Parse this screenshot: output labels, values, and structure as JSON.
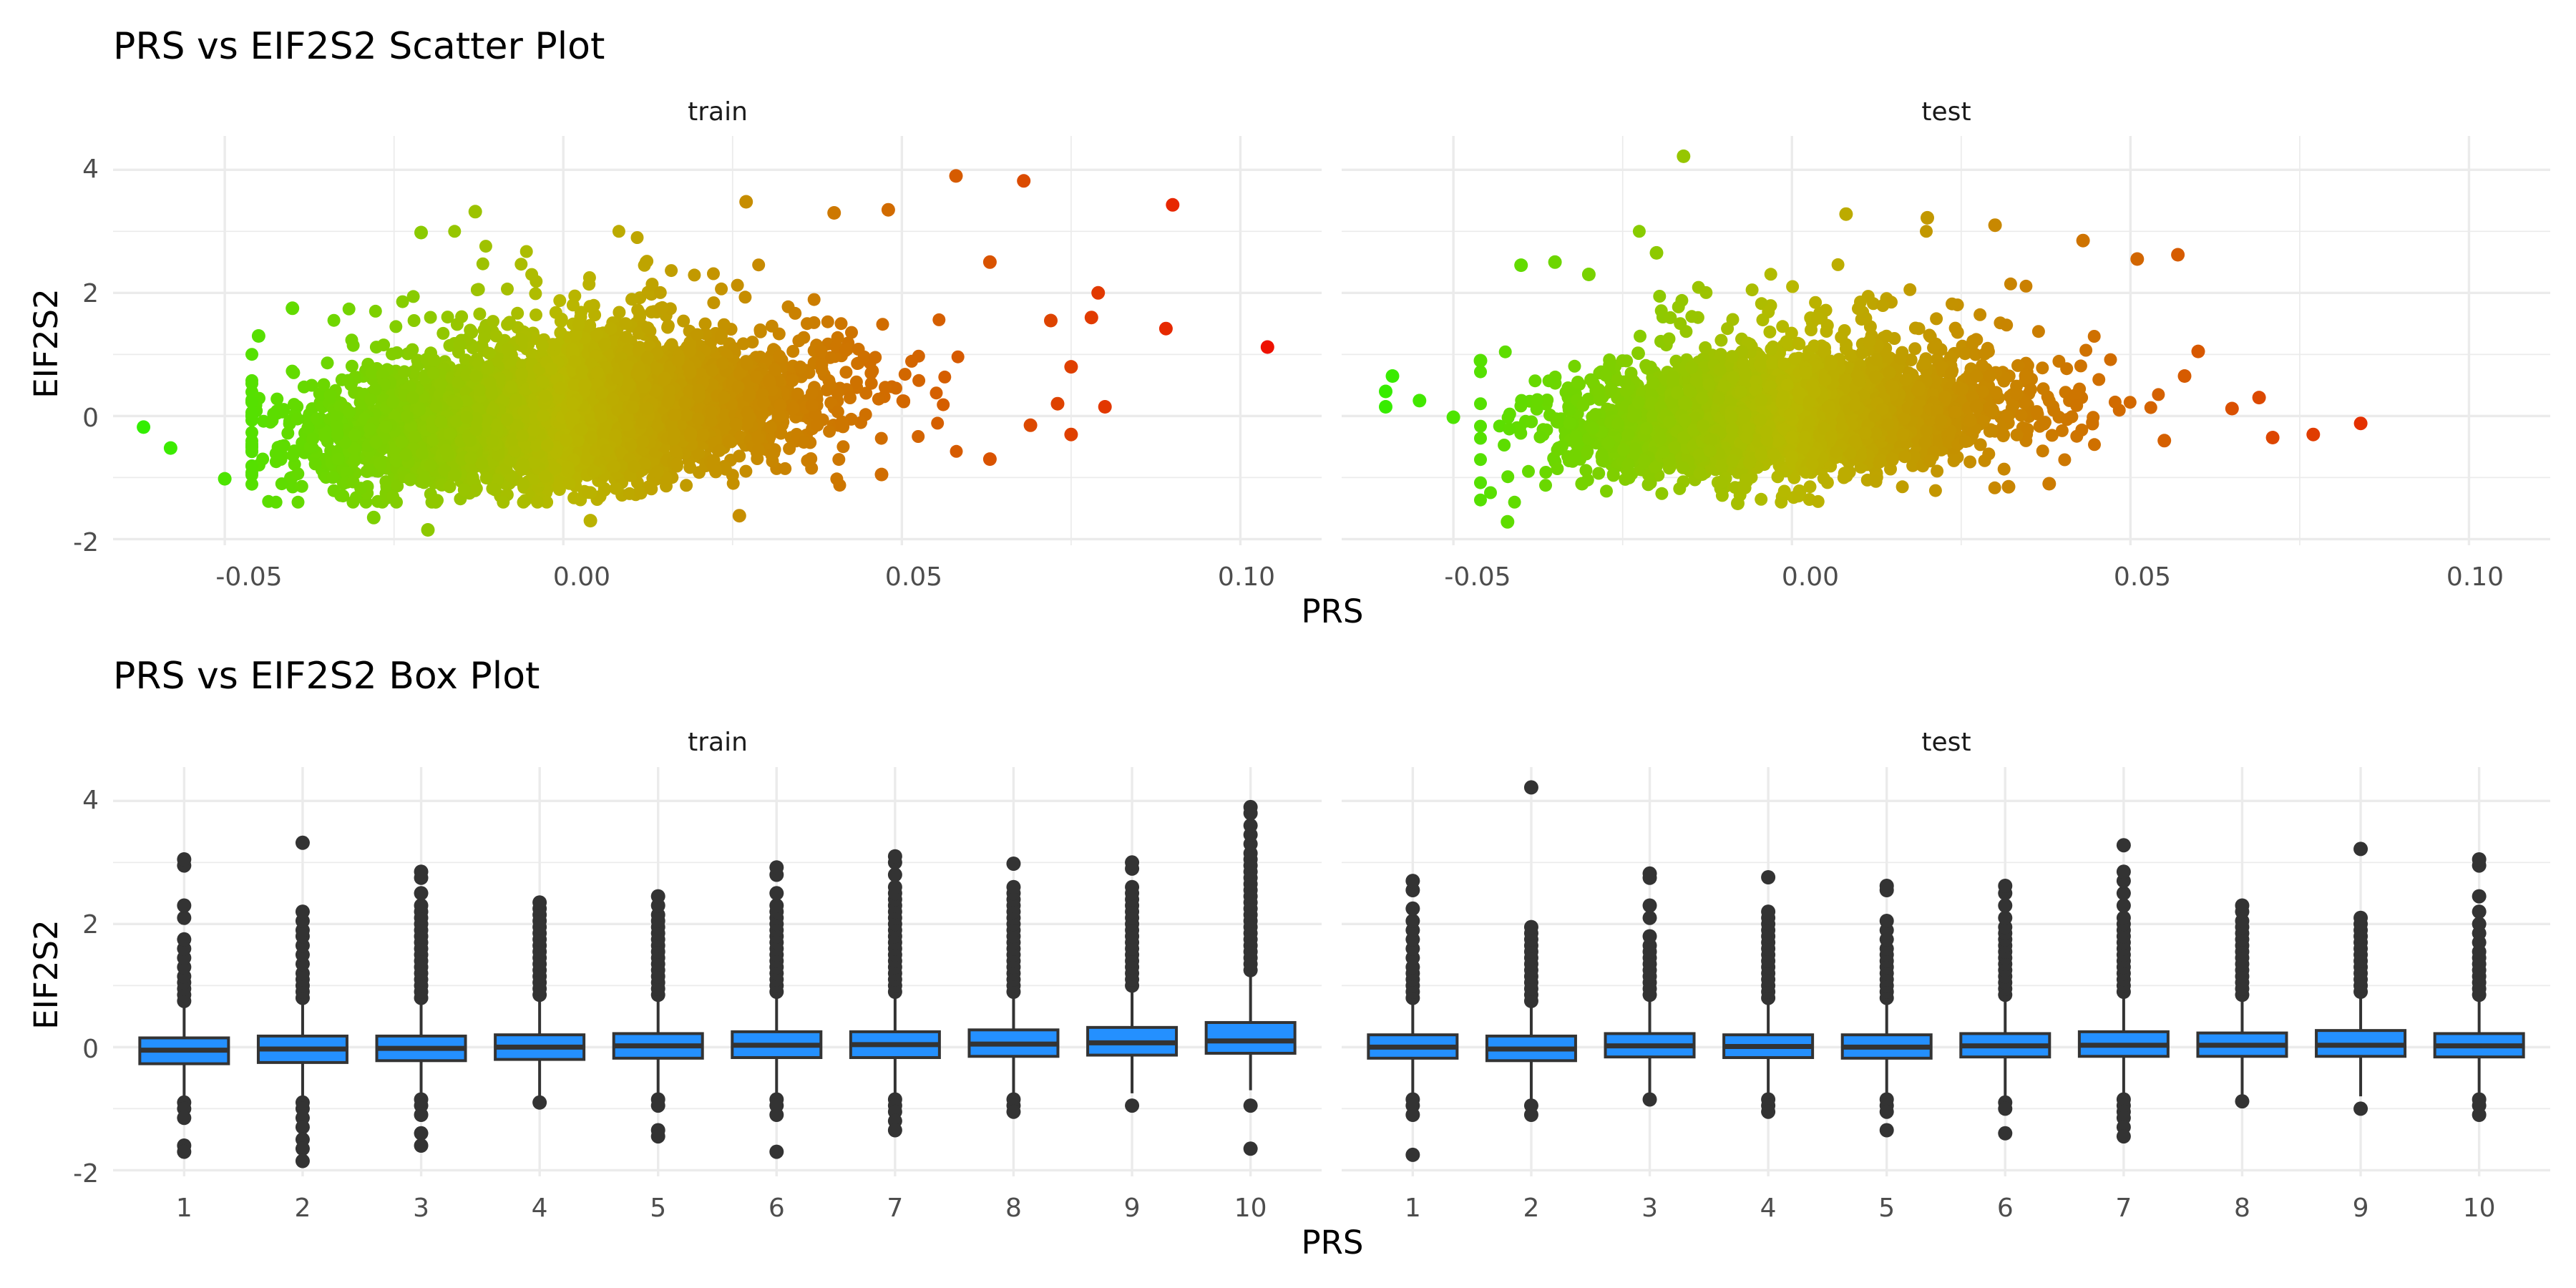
{
  "chart_data": [
    {
      "type": "scatter",
      "title": "PRS vs EIF2S2 Scatter Plot",
      "xlabel": "PRS",
      "ylabel": "EIF2S2",
      "panels": [
        "train",
        "test"
      ],
      "xlim": [
        -0.0665,
        0.112
      ],
      "ylim": [
        -2.1,
        4.55
      ],
      "x_ticks": [
        -0.05,
        0.0,
        0.05,
        0.1
      ],
      "x_tick_labels": [
        "-0.05",
        "0.00",
        "0.05",
        "0.10"
      ],
      "y_ticks": [
        -2,
        0,
        2,
        4
      ],
      "y_tick_labels": [
        "-2",
        "0",
        "2",
        "4"
      ],
      "color_scale": {
        "low": "#33ee00",
        "mid": "#b8b800",
        "high": "#ee1100"
      },
      "facets": [
        {
          "panel": "train",
          "x_mean": 0.0,
          "x_sd": 0.017,
          "y_sd": 0.5,
          "slope": 8,
          "n_points": 5500,
          "points": [
            {
              "x": -0.062,
              "y": -0.18
            },
            {
              "x": -0.058,
              "y": -0.52
            },
            {
              "x": -0.05,
              "y": -1.02
            },
            {
              "x": -0.045,
              "y": 1.3
            },
            {
              "x": -0.04,
              "y": 1.75
            },
            {
              "x": -0.028,
              "y": -1.65
            },
            {
              "x": -0.02,
              "y": -1.85
            },
            {
              "x": -0.021,
              "y": 2.98
            },
            {
              "x": -0.013,
              "y": 3.32
            },
            {
              "x": 0.004,
              "y": -1.7
            },
            {
              "x": 0.026,
              "y": -1.62
            },
            {
              "x": 0.027,
              "y": 3.48
            },
            {
              "x": 0.04,
              "y": 3.3
            },
            {
              "x": 0.048,
              "y": 3.35
            },
            {
              "x": 0.058,
              "y": 3.9
            },
            {
              "x": 0.068,
              "y": 3.82
            },
            {
              "x": 0.09,
              "y": 3.43
            },
            {
              "x": 0.089,
              "y": 1.42
            },
            {
              "x": 0.104,
              "y": 1.12
            },
            {
              "x": 0.079,
              "y": 2.0
            },
            {
              "x": 0.078,
              "y": 1.6
            },
            {
              "x": 0.072,
              "y": 1.55
            },
            {
              "x": 0.063,
              "y": 2.5
            },
            {
              "x": 0.075,
              "y": 0.8
            },
            {
              "x": 0.08,
              "y": 0.15
            },
            {
              "x": 0.073,
              "y": 0.2
            },
            {
              "x": 0.075,
              "y": -0.3
            },
            {
              "x": 0.069,
              "y": -0.15
            },
            {
              "x": 0.063,
              "y": -0.7
            },
            {
              "x": 0.047,
              "y": -0.95
            }
          ]
        },
        {
          "panel": "test",
          "x_mean": 0.0,
          "x_sd": 0.016,
          "y_sd": 0.45,
          "slope": 6,
          "n_points": 3200,
          "points": [
            {
              "x": -0.016,
              "y": 4.22
            },
            {
              "x": -0.059,
              "y": 0.65
            },
            {
              "x": -0.06,
              "y": 0.4
            },
            {
              "x": -0.06,
              "y": 0.15
            },
            {
              "x": -0.055,
              "y": 0.25
            },
            {
              "x": -0.05,
              "y": -0.02
            },
            {
              "x": -0.046,
              "y": 0.9
            },
            {
              "x": -0.042,
              "y": -1.72
            },
            {
              "x": -0.04,
              "y": 2.45
            },
            {
              "x": -0.035,
              "y": 2.5
            },
            {
              "x": -0.03,
              "y": 2.3
            },
            {
              "x": -0.031,
              "y": -1.1
            },
            {
              "x": -0.02,
              "y": 2.65
            },
            {
              "x": 0.008,
              "y": 3.28
            },
            {
              "x": 0.02,
              "y": 3.22
            },
            {
              "x": 0.03,
              "y": 3.1
            },
            {
              "x": 0.043,
              "y": 2.85
            },
            {
              "x": 0.051,
              "y": 2.55
            },
            {
              "x": 0.057,
              "y": 2.62
            },
            {
              "x": 0.06,
              "y": 1.05
            },
            {
              "x": 0.058,
              "y": 0.65
            },
            {
              "x": 0.065,
              "y": 0.12
            },
            {
              "x": 0.069,
              "y": 0.3
            },
            {
              "x": 0.071,
              "y": -0.35
            },
            {
              "x": 0.077,
              "y": -0.3
            },
            {
              "x": 0.084,
              "y": -0.12
            },
            {
              "x": 0.055,
              "y": -0.4
            },
            {
              "x": 0.032,
              "y": -1.15
            },
            {
              "x": 0.038,
              "y": -1.1
            },
            {
              "x": -0.008,
              "y": -1.42
            }
          ]
        }
      ]
    },
    {
      "type": "box",
      "title": "PRS vs EIF2S2 Box Plot",
      "xlabel": "PRS",
      "ylabel": "EIF2S2",
      "panels": [
        "train",
        "test"
      ],
      "categories": [
        "1",
        "2",
        "3",
        "4",
        "5",
        "6",
        "7",
        "8",
        "9",
        "10"
      ],
      "ylim": [
        -2.1,
        4.55
      ],
      "y_ticks": [
        -2,
        0,
        2,
        4
      ],
      "y_tick_labels": [
        "-2",
        "0",
        "2",
        "4"
      ],
      "box_color": "#2490ff",
      "facets": [
        {
          "panel": "train",
          "boxes": [
            {
              "q1": -0.27,
              "median": -0.05,
              "q3": 0.15,
              "whisker_low": -0.85,
              "whisker_high": 0.7,
              "outliers": [
                0.75,
                0.85,
                0.95,
                1.05,
                1.15,
                1.3,
                1.45,
                1.6,
                1.75,
                2.1,
                2.3,
                2.95,
                3.05,
                -0.9,
                -1.0,
                -1.15,
                -1.6,
                -1.7
              ]
            },
            {
              "q1": -0.25,
              "median": -0.03,
              "q3": 0.18,
              "whisker_low": -0.85,
              "whisker_high": 0.75,
              "outliers": [
                0.8,
                0.9,
                1.0,
                1.1,
                1.2,
                1.35,
                1.5,
                1.65,
                1.8,
                1.9,
                2.05,
                2.2,
                3.32,
                -0.9,
                -1.0,
                -1.15,
                -1.3,
                -1.5,
                -1.65,
                -1.85
              ]
            },
            {
              "q1": -0.22,
              "median": -0.02,
              "q3": 0.18,
              "whisker_low": -0.8,
              "whisker_high": 0.75,
              "outliers": [
                0.8,
                0.9,
                1.0,
                1.1,
                1.2,
                1.3,
                1.4,
                1.5,
                1.6,
                1.7,
                1.8,
                1.9,
                2.0,
                2.1,
                2.2,
                2.3,
                2.5,
                2.75,
                2.85,
                -0.85,
                -0.95,
                -1.1,
                -1.4,
                -1.6
              ]
            },
            {
              "q1": -0.2,
              "median": 0.0,
              "q3": 0.2,
              "whisker_low": -0.8,
              "whisker_high": 0.8,
              "outliers": [
                0.85,
                0.95,
                1.05,
                1.15,
                1.25,
                1.35,
                1.45,
                1.55,
                1.65,
                1.75,
                1.85,
                1.95,
                2.05,
                2.15,
                2.25,
                2.35,
                -0.9
              ]
            },
            {
              "q1": -0.18,
              "median": 0.02,
              "q3": 0.22,
              "whisker_low": -0.8,
              "whisker_high": 0.8,
              "outliers": [
                0.85,
                0.95,
                1.05,
                1.15,
                1.25,
                1.35,
                1.45,
                1.55,
                1.65,
                1.75,
                1.85,
                1.95,
                2.05,
                2.15,
                2.3,
                2.45,
                -0.85,
                -0.95,
                -1.35,
                -1.45
              ]
            },
            {
              "q1": -0.17,
              "median": 0.03,
              "q3": 0.25,
              "whisker_low": -0.8,
              "whisker_high": 0.85,
              "outliers": [
                0.9,
                1.0,
                1.1,
                1.2,
                1.3,
                1.4,
                1.5,
                1.6,
                1.7,
                1.8,
                1.9,
                2.0,
                2.1,
                2.2,
                2.3,
                2.5,
                2.8,
                2.92,
                -0.85,
                -0.95,
                -1.1,
                -1.7
              ]
            },
            {
              "q1": -0.17,
              "median": 0.04,
              "q3": 0.25,
              "whisker_low": -0.8,
              "whisker_high": 0.85,
              "outliers": [
                0.9,
                1.0,
                1.1,
                1.2,
                1.3,
                1.4,
                1.5,
                1.6,
                1.7,
                1.8,
                1.9,
                2.0,
                2.1,
                2.2,
                2.3,
                2.4,
                2.5,
                2.6,
                2.8,
                3.0,
                3.1,
                -0.85,
                -0.95,
                -1.05,
                -1.2,
                -1.35
              ]
            },
            {
              "q1": -0.15,
              "median": 0.05,
              "q3": 0.28,
              "whisker_low": -0.8,
              "whisker_high": 0.85,
              "outliers": [
                0.9,
                1.0,
                1.1,
                1.2,
                1.3,
                1.4,
                1.5,
                1.6,
                1.7,
                1.8,
                1.9,
                2.0,
                2.1,
                2.2,
                2.3,
                2.4,
                2.5,
                2.6,
                2.98,
                -0.85,
                -0.95,
                -1.05
              ]
            },
            {
              "q1": -0.13,
              "median": 0.07,
              "q3": 0.32,
              "whisker_low": -0.75,
              "whisker_high": 0.95,
              "outliers": [
                1.0,
                1.1,
                1.2,
                1.3,
                1.4,
                1.5,
                1.6,
                1.7,
                1.8,
                1.9,
                2.0,
                2.1,
                2.2,
                2.3,
                2.4,
                2.5,
                2.6,
                2.9,
                3.0,
                -0.95
              ]
            },
            {
              "q1": -0.1,
              "median": 0.1,
              "q3": 0.4,
              "whisker_low": -0.7,
              "whisker_high": 1.2,
              "outliers": [
                1.25,
                1.35,
                1.45,
                1.55,
                1.65,
                1.75,
                1.85,
                1.95,
                2.05,
                2.15,
                2.25,
                2.35,
                2.45,
                2.55,
                2.65,
                2.75,
                2.85,
                2.95,
                3.05,
                3.15,
                3.3,
                3.45,
                3.6,
                3.8,
                3.9,
                -0.95,
                -1.65
              ]
            }
          ]
        },
        {
          "panel": "test",
          "boxes": [
            {
              "q1": -0.18,
              "median": 0.0,
              "q3": 0.2,
              "whisker_low": -0.8,
              "whisker_high": 0.75,
              "outliers": [
                0.8,
                0.9,
                1.0,
                1.1,
                1.2,
                1.3,
                1.45,
                1.6,
                1.75,
                1.9,
                2.05,
                2.25,
                2.55,
                2.7,
                -0.85,
                -0.95,
                -1.1,
                -1.75
              ]
            },
            {
              "q1": -0.22,
              "median": -0.03,
              "q3": 0.18,
              "whisker_low": -0.85,
              "whisker_high": 0.7,
              "outliers": [
                0.75,
                0.85,
                0.95,
                1.05,
                1.15,
                1.25,
                1.35,
                1.45,
                1.55,
                1.65,
                1.75,
                1.85,
                1.95,
                4.22,
                -0.95,
                -1.1
              ]
            },
            {
              "q1": -0.16,
              "median": 0.02,
              "q3": 0.22,
              "whisker_low": -0.75,
              "whisker_high": 0.8,
              "outliers": [
                0.85,
                0.95,
                1.05,
                1.15,
                1.25,
                1.35,
                1.45,
                1.55,
                1.65,
                1.8,
                2.1,
                2.3,
                2.75,
                2.82,
                -0.85
              ]
            },
            {
              "q1": -0.17,
              "median": 0.01,
              "q3": 0.2,
              "whisker_low": -0.8,
              "whisker_high": 0.75,
              "outliers": [
                0.8,
                0.9,
                1.0,
                1.1,
                1.2,
                1.3,
                1.4,
                1.5,
                1.6,
                1.7,
                1.8,
                1.9,
                2.0,
                2.1,
                2.2,
                2.76,
                -0.85,
                -0.95,
                -1.05
              ]
            },
            {
              "q1": -0.18,
              "median": 0.0,
              "q3": 0.2,
              "whisker_low": -0.8,
              "whisker_high": 0.75,
              "outliers": [
                0.8,
                0.9,
                1.0,
                1.1,
                1.2,
                1.3,
                1.4,
                1.5,
                1.6,
                1.75,
                1.9,
                2.05,
                2.55,
                2.62,
                -0.85,
                -0.95,
                -1.05,
                -1.35
              ]
            },
            {
              "q1": -0.16,
              "median": 0.02,
              "q3": 0.22,
              "whisker_low": -0.8,
              "whisker_high": 0.8,
              "outliers": [
                0.85,
                0.95,
                1.05,
                1.15,
                1.25,
                1.35,
                1.45,
                1.55,
                1.65,
                1.75,
                1.85,
                1.95,
                2.1,
                2.3,
                2.5,
                2.62,
                -0.9,
                -1.0,
                -1.4
              ]
            },
            {
              "q1": -0.15,
              "median": 0.03,
              "q3": 0.25,
              "whisker_low": -0.8,
              "whisker_high": 0.85,
              "outliers": [
                0.9,
                1.0,
                1.1,
                1.2,
                1.3,
                1.4,
                1.5,
                1.6,
                1.7,
                1.8,
                1.9,
                2.0,
                2.1,
                2.3,
                2.5,
                2.7,
                2.85,
                3.28,
                -0.85,
                -0.95,
                -1.05,
                -1.15,
                -1.3,
                -1.45
              ]
            },
            {
              "q1": -0.15,
              "median": 0.03,
              "q3": 0.23,
              "whisker_low": -0.8,
              "whisker_high": 0.82,
              "outliers": [
                0.85,
                0.95,
                1.05,
                1.15,
                1.25,
                1.35,
                1.45,
                1.55,
                1.65,
                1.75,
                1.85,
                1.95,
                2.05,
                2.2,
                2.3,
                -0.88
              ]
            },
            {
              "q1": -0.15,
              "median": 0.03,
              "q3": 0.27,
              "whisker_low": -0.8,
              "whisker_high": 0.85,
              "outliers": [
                0.9,
                1.0,
                1.1,
                1.2,
                1.3,
                1.4,
                1.5,
                1.6,
                1.7,
                1.8,
                1.9,
                2.0,
                2.1,
                3.22,
                -1.0
              ]
            },
            {
              "q1": -0.16,
              "median": 0.02,
              "q3": 0.22,
              "whisker_low": -0.8,
              "whisker_high": 0.8,
              "outliers": [
                0.85,
                0.95,
                1.05,
                1.15,
                1.25,
                1.35,
                1.45,
                1.55,
                1.7,
                1.85,
                2.0,
                2.2,
                2.45,
                2.95,
                3.05,
                -0.85,
                -0.95,
                -1.1
              ]
            }
          ]
        }
      ]
    }
  ]
}
